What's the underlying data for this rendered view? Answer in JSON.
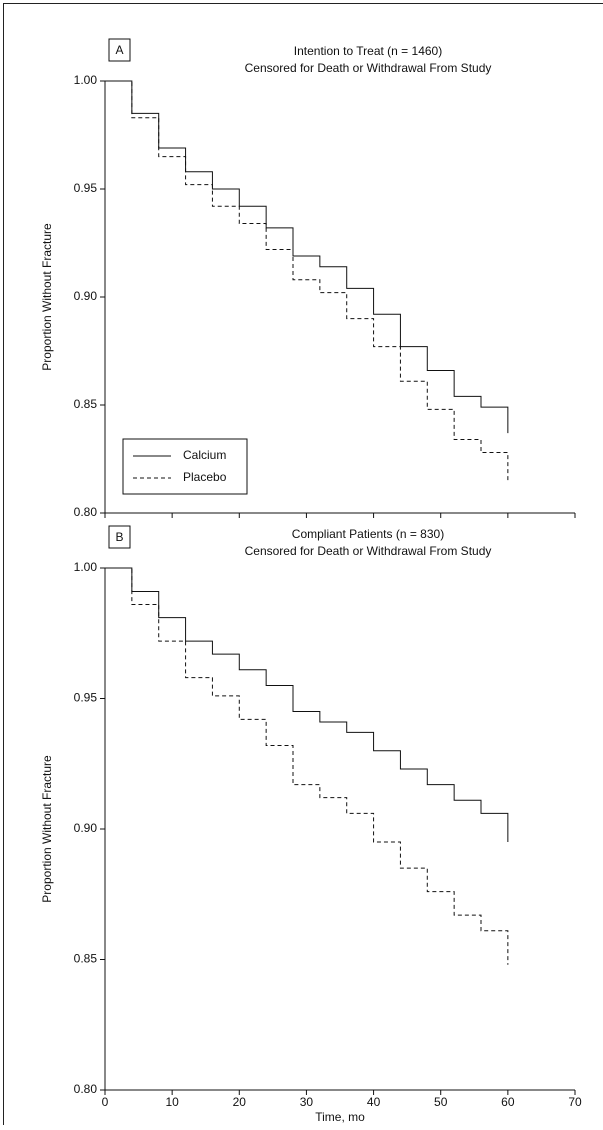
{
  "chart_data": [
    {
      "type": "step",
      "panel_label": "A",
      "title": "Intention to Treat (n = 1460)",
      "subtitle": "Censored for Death or Withdrawal From Study",
      "ylabel": "Proportion Without Fracture",
      "x": [
        0,
        4,
        8,
        12,
        16,
        20,
        24,
        28,
        32,
        36,
        40,
        44,
        48,
        52,
        56,
        60
      ],
      "series": [
        {
          "name": "Calcium",
          "color": "#111111",
          "line_style": "solid",
          "values": [
            1.0,
            0.985,
            0.969,
            0.958,
            0.95,
            0.942,
            0.932,
            0.919,
            0.914,
            0.904,
            0.892,
            0.877,
            0.866,
            0.854,
            0.849,
            0.837
          ]
        },
        {
          "name": "Placebo",
          "color": "#111111",
          "line_style": "dashed",
          "values": [
            1.0,
            0.983,
            0.965,
            0.952,
            0.942,
            0.934,
            0.922,
            0.908,
            0.902,
            0.89,
            0.877,
            0.861,
            0.848,
            0.834,
            0.828,
            0.815
          ]
        }
      ],
      "xlim": [
        0,
        70
      ],
      "xticks": [
        0,
        10,
        20,
        30,
        40,
        50,
        60,
        70
      ],
      "x_tick_labels": false,
      "ylim": [
        0.8,
        1.0
      ],
      "yticks": [
        {
          "value": 0.8,
          "label": "0.80"
        },
        {
          "value": 0.85,
          "label": "0.85"
        },
        {
          "value": 0.9,
          "label": "0.90"
        },
        {
          "value": 0.95,
          "label": "0.95"
        },
        {
          "value": 1.0,
          "label": "1.00"
        }
      ],
      "legend": "lower left"
    },
    {
      "type": "step",
      "panel_label": "B",
      "title": "Compliant Patients (n = 830)",
      "subtitle": "Censored for Death or Withdrawal From Study",
      "ylabel": "Proportion Without Fracture",
      "xlabel": "Time, mo",
      "x": [
        0,
        4,
        8,
        12,
        16,
        20,
        24,
        28,
        32,
        36,
        40,
        44,
        48,
        52,
        56,
        60
      ],
      "series": [
        {
          "name": "Calcium",
          "color": "#111111",
          "line_style": "solid",
          "values": [
            1.0,
            0.991,
            0.981,
            0.972,
            0.967,
            0.961,
            0.955,
            0.945,
            0.941,
            0.937,
            0.93,
            0.923,
            0.917,
            0.911,
            0.906,
            0.895
          ]
        },
        {
          "name": "Placebo",
          "color": "#111111",
          "line_style": "dashed",
          "values": [
            1.0,
            0.986,
            0.972,
            0.958,
            0.951,
            0.942,
            0.932,
            0.917,
            0.912,
            0.906,
            0.895,
            0.885,
            0.876,
            0.867,
            0.861,
            0.848
          ]
        }
      ],
      "xlim": [
        0,
        70
      ],
      "xticks": [
        0,
        10,
        20,
        30,
        40,
        50,
        60,
        70
      ],
      "x_tick_labels": true,
      "ylim": [
        0.8,
        1.0
      ],
      "yticks": [
        {
          "value": 0.8,
          "label": "0.80"
        },
        {
          "value": 0.85,
          "label": "0.85"
        },
        {
          "value": 0.9,
          "label": "0.90"
        },
        {
          "value": 0.95,
          "label": "0.95"
        },
        {
          "value": 1.0,
          "label": "1.00"
        }
      ]
    }
  ]
}
